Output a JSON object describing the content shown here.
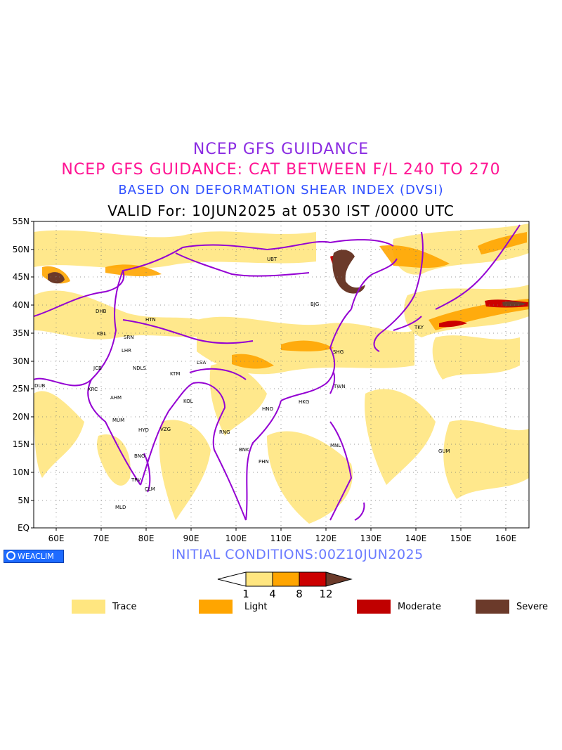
{
  "titles": {
    "line1": "NCEP GFS GUIDANCE",
    "line2": "NCEP GFS GUIDANCE: CAT BETWEEN F/L 240 TO 270",
    "line3": "BASED ON DEFORMATION SHEAR INDEX (DVSI)",
    "line4": "VALID For: 10JUN2025 at 0530 IST /0000 UTC"
  },
  "lat_labels": [
    "55N",
    "50N",
    "45N",
    "40N",
    "35N",
    "30N",
    "25N",
    "20N",
    "15N",
    "10N",
    "5N",
    "EQ"
  ],
  "lon_labels": [
    "60E",
    "70E",
    "80E",
    "90E",
    "100E",
    "110E",
    "120E",
    "130E",
    "140E",
    "150E",
    "160E"
  ],
  "cities": [
    "UBT",
    "DHB",
    "HTN",
    "BJG",
    "KBL",
    "SRN",
    "TKY",
    "LHR",
    "SHG",
    "JCB",
    "NDLS",
    "KTM",
    "LSA",
    "DUB",
    "KRC",
    "TWN",
    "AHM",
    "KOL",
    "HNO",
    "HKG",
    "MUM",
    "HYD",
    "VZG",
    "RNG",
    "BNK",
    "MNL",
    "GUM",
    "BNG",
    "PHN",
    "TRV",
    "CLM",
    "MLD"
  ],
  "logo_text": "WEACLIM",
  "initial_conditions": "INITIAL CONDITIONS:00Z10JUN2025",
  "colorbar": {
    "ticks": [
      "1",
      "4",
      "8",
      "12"
    ],
    "colors": [
      "#ffe680",
      "#ffa500",
      "#cc0000",
      "#6b3a2a"
    ]
  },
  "legend": [
    {
      "label": "Trace",
      "color": "#ffe680"
    },
    {
      "label": "Light",
      "color": "#ffa500"
    },
    {
      "label": "Moderate",
      "color": "#c00000"
    },
    {
      "label": "Severe",
      "color": "#6b3a2a"
    }
  ],
  "map": {
    "lat_range": [
      0,
      55
    ],
    "lon_range": [
      55,
      165
    ],
    "grid": "dotted",
    "boundary_color": "#9400d3"
  }
}
